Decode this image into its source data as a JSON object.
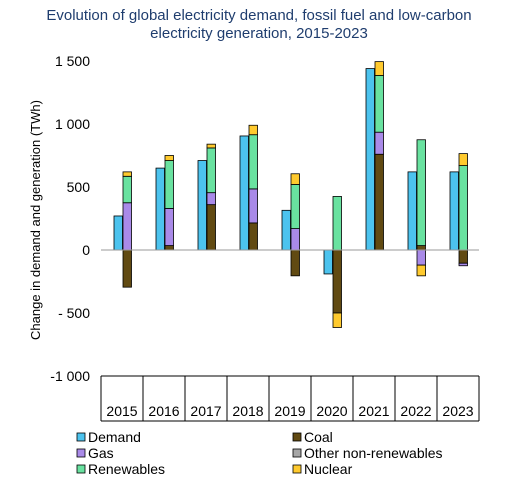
{
  "chart_data": {
    "type": "bar",
    "title_lines": [
      "Evolution of global electricity demand, fossil fuel and low-carbon",
      "electricity generation, 2015-2023"
    ],
    "ylabel": "Change in demand and generation (TWh)",
    "xlabel": "",
    "ylim": [
      -1000,
      1500
    ],
    "yticks": [
      1500,
      1000,
      500,
      0,
      -500,
      -1000
    ],
    "ytick_labels": [
      "1 500",
      "1 000",
      "500",
      "0",
      "- 500",
      "-1 000"
    ],
    "grid": false,
    "legend_position": "bottom",
    "categories": [
      "2015",
      "2016",
      "2017",
      "2018",
      "2019",
      "2020",
      "2021",
      "2022",
      "2023"
    ],
    "series": [
      {
        "name": "Demand",
        "color": "#4cc3ee",
        "stack": "demand",
        "values": [
          270,
          650,
          710,
          905,
          315,
          -190,
          1440,
          620,
          620
        ]
      },
      {
        "name": "Coal",
        "color": "#614a12",
        "stack": "supply",
        "values": [
          -295,
          35,
          360,
          215,
          -205,
          -500,
          760,
          35,
          -105
        ]
      },
      {
        "name": "Gas",
        "color": "#a98ae8",
        "stack": "supply",
        "values": [
          375,
          295,
          95,
          270,
          170,
          0,
          175,
          -120,
          -20
        ]
      },
      {
        "name": "Other non-renewables",
        "color": "#a6a6a6",
        "stack": "supply",
        "values": [
          0,
          0,
          0,
          0,
          0,
          0,
          0,
          0,
          0
        ]
      },
      {
        "name": "Renewables",
        "color": "#69e2a0",
        "stack": "supply",
        "values": [
          210,
          380,
          355,
          430,
          350,
          425,
          450,
          840,
          670
        ]
      },
      {
        "name": "Nuclear",
        "color": "#ffca2e",
        "stack": "supply",
        "values": [
          35,
          40,
          30,
          75,
          85,
          -115,
          110,
          -85,
          95
        ]
      }
    ],
    "legend_entries": [
      "Demand",
      "Coal",
      "Gas",
      "Other non-renewables",
      "Renewables",
      "Nuclear"
    ]
  }
}
